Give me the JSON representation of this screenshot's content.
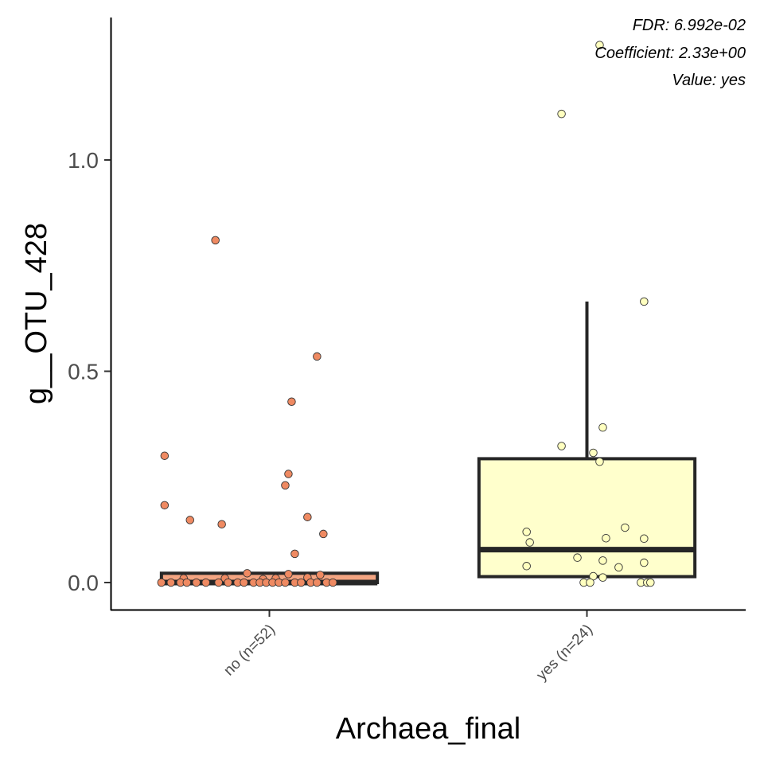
{
  "chart_data": {
    "type": "boxplot",
    "title": "",
    "xlabel": "Archaea_final",
    "ylabel": "g__OTU_428",
    "ylim": [
      -0.06,
      1.33
    ],
    "y_ticks": [
      0.0,
      0.5,
      1.0
    ],
    "y_tick_labels": [
      "0.0",
      "0.5",
      "1.0"
    ],
    "grid": false,
    "legend": "none",
    "categories": [
      "no (n=52)",
      "yes (n=24)"
    ],
    "annotations": [
      "FDR: 6.992e-02",
      "Coefficient: 2.33e+00",
      "Value: yes"
    ],
    "series": [
      {
        "category": "no (n=52)",
        "color": "#F4A582",
        "point_color": "#EF8A62",
        "box": {
          "q1": 0.0,
          "median": 0.0,
          "q3": 0.022,
          "whisker_low": 0.0,
          "whisker_high": 0.022
        },
        "points": [
          {
            "x": -0.17,
            "y": 0.81
          },
          {
            "x": 0.15,
            "y": 0.535
          },
          {
            "x": 0.07,
            "y": 0.428
          },
          {
            "x": -0.33,
            "y": 0.3
          },
          {
            "x": 0.06,
            "y": 0.257
          },
          {
            "x": 0.05,
            "y": 0.23
          },
          {
            "x": -0.33,
            "y": 0.183
          },
          {
            "x": 0.12,
            "y": 0.155
          },
          {
            "x": -0.25,
            "y": 0.148
          },
          {
            "x": -0.15,
            "y": 0.138
          },
          {
            "x": 0.17,
            "y": 0.115
          },
          {
            "x": 0.08,
            "y": 0.068
          },
          {
            "x": -0.07,
            "y": 0.022
          },
          {
            "x": 0.16,
            "y": 0.018
          },
          {
            "x": 0.06,
            "y": 0.02
          },
          {
            "x": -0.14,
            "y": 0.01
          },
          {
            "x": 0.12,
            "y": 0.012
          },
          {
            "x": 0.02,
            "y": 0.01
          },
          {
            "x": -0.27,
            "y": 0.01
          },
          {
            "x": -0.02,
            "y": 0.008
          },
          {
            "x": -0.34,
            "y": 0.0
          },
          {
            "x": -0.31,
            "y": 0.0
          },
          {
            "x": -0.28,
            "y": 0.0
          },
          {
            "x": -0.26,
            "y": 0.0
          },
          {
            "x": -0.23,
            "y": 0.0
          },
          {
            "x": -0.2,
            "y": 0.0
          },
          {
            "x": -0.16,
            "y": 0.0
          },
          {
            "x": -0.13,
            "y": 0.0
          },
          {
            "x": -0.1,
            "y": 0.0
          },
          {
            "x": -0.08,
            "y": 0.0
          },
          {
            "x": -0.05,
            "y": 0.0
          },
          {
            "x": -0.03,
            "y": 0.0
          },
          {
            "x": -0.01,
            "y": 0.0
          },
          {
            "x": 0.01,
            "y": 0.0
          },
          {
            "x": 0.03,
            "y": 0.0
          },
          {
            "x": 0.05,
            "y": 0.0
          },
          {
            "x": 0.08,
            "y": 0.0
          },
          {
            "x": 0.1,
            "y": 0.0
          },
          {
            "x": 0.13,
            "y": 0.0
          },
          {
            "x": 0.15,
            "y": 0.0
          },
          {
            "x": 0.18,
            "y": 0.0
          },
          {
            "x": 0.2,
            "y": 0.0
          }
        ]
      },
      {
        "category": "yes (n=24)",
        "color": "#FFFFCC",
        "point_color": "#FFFFBF",
        "box": {
          "q1": 0.014,
          "median": 0.078,
          "q3": 0.293,
          "whisker_low": 0.014,
          "whisker_high": 0.665
        },
        "points": [
          {
            "x": 0.04,
            "y": 1.272
          },
          {
            "x": -0.08,
            "y": 1.109
          },
          {
            "x": 0.18,
            "y": 0.665
          },
          {
            "x": 0.05,
            "y": 0.367
          },
          {
            "x": -0.08,
            "y": 0.323
          },
          {
            "x": 0.02,
            "y": 0.307
          },
          {
            "x": 0.04,
            "y": 0.286
          },
          {
            "x": 0.12,
            "y": 0.13
          },
          {
            "x": -0.19,
            "y": 0.12
          },
          {
            "x": 0.06,
            "y": 0.105
          },
          {
            "x": 0.18,
            "y": 0.104
          },
          {
            "x": -0.18,
            "y": 0.095
          },
          {
            "x": -0.03,
            "y": 0.059
          },
          {
            "x": 0.05,
            "y": 0.052
          },
          {
            "x": 0.18,
            "y": 0.047
          },
          {
            "x": -0.19,
            "y": 0.039
          },
          {
            "x": 0.1,
            "y": 0.036
          },
          {
            "x": 0.02,
            "y": 0.015
          },
          {
            "x": 0.05,
            "y": 0.012
          },
          {
            "x": -0.01,
            "y": 0.0
          },
          {
            "x": 0.01,
            "y": 0.0
          },
          {
            "x": 0.17,
            "y": 0.0
          },
          {
            "x": 0.19,
            "y": 0.0
          },
          {
            "x": 0.2,
            "y": 0.0
          }
        ]
      }
    ]
  }
}
